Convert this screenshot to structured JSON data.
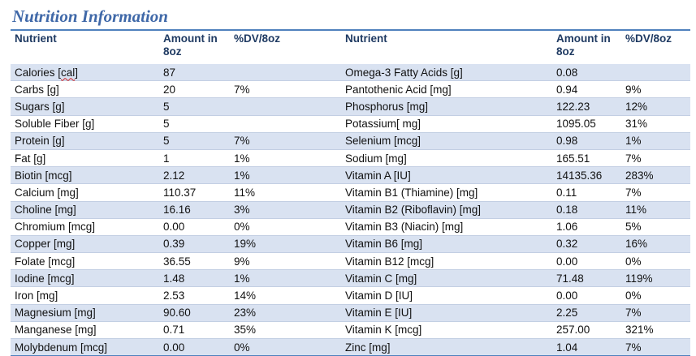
{
  "title": "Nutrition Information",
  "headers": {
    "nutrient": "Nutrient",
    "amount": "Amount in 8oz",
    "dv": "%DV/8oz"
  },
  "rows": [
    {
      "l_name": "Calories [cal]",
      "l_amt": "87",
      "l_dv": "",
      "r_name": "Omega-3 Fatty Acids [g]",
      "r_amt": "0.08",
      "r_dv": ""
    },
    {
      "l_name": "Carbs [g]",
      "l_amt": "20",
      "l_dv": "7%",
      "r_name": "Pantothenic Acid [mg]",
      "r_amt": "0.94",
      "r_dv": "9%"
    },
    {
      "l_name": "Sugars [g]",
      "l_amt": "5",
      "l_dv": "",
      "r_name": "Phosphorus [mg]",
      "r_amt": "122.23",
      "r_dv": "12%"
    },
    {
      "l_name": "Soluble Fiber [g]",
      "l_amt": "5",
      "l_dv": "",
      "r_name": "Potassium[ mg]",
      "r_amt": "1095.05",
      "r_dv": "31%"
    },
    {
      "l_name": "Protein [g]",
      "l_amt": "5",
      "l_dv": "7%",
      "r_name": "Selenium [mcg]",
      "r_amt": "0.98",
      "r_dv": "1%"
    },
    {
      "l_name": "Fat [g]",
      "l_amt": "1",
      "l_dv": "1%",
      "r_name": "Sodium [mg]",
      "r_amt": "165.51",
      "r_dv": "7%"
    },
    {
      "l_name": "Biotin [mcg]",
      "l_amt": "2.12",
      "l_dv": "1%",
      "r_name": "Vitamin A [IU]",
      "r_amt": "14135.36",
      "r_dv": "283%"
    },
    {
      "l_name": "Calcium [mg]",
      "l_amt": "110.37",
      "l_dv": "11%",
      "r_name": "Vitamin B1 (Thiamine) [mg]",
      "r_amt": "0.11",
      "r_dv": "7%"
    },
    {
      "l_name": "Choline [mg]",
      "l_amt": "16.16",
      "l_dv": "3%",
      "r_name": "Vitamin B2 (Riboflavin) [mg]",
      "r_amt": "0.18",
      "r_dv": "11%"
    },
    {
      "l_name": "Chromium [mcg]",
      "l_amt": "0.00",
      "l_dv": "0%",
      "r_name": "Vitamin B3 (Niacin) [mg]",
      "r_amt": "1.06",
      "r_dv": "5%"
    },
    {
      "l_name": "Copper [mg]",
      "l_amt": "0.39",
      "l_dv": "19%",
      "r_name": "Vitamin B6 [mg]",
      "r_amt": "0.32",
      "r_dv": "16%"
    },
    {
      "l_name": "Folate [mcg]",
      "l_amt": "36.55",
      "l_dv": "9%",
      "r_name": "Vitamin B12 [mcg]",
      "r_amt": "0.00",
      "r_dv": "0%"
    },
    {
      "l_name": "Iodine [mcg]",
      "l_amt": "1.48",
      "l_dv": "1%",
      "r_name": "Vitamin C [mg]",
      "r_amt": "71.48",
      "r_dv": "119%"
    },
    {
      "l_name": "Iron [mg]",
      "l_amt": "2.53",
      "l_dv": "14%",
      "r_name": "Vitamin D [IU]",
      "r_amt": "0.00",
      "r_dv": "0%"
    },
    {
      "l_name": "Magnesium [mg]",
      "l_amt": "90.60",
      "l_dv": "23%",
      "r_name": "Vitamin E [IU]",
      "r_amt": "2.25",
      "r_dv": "7%"
    },
    {
      "l_name": "Manganese [mg]",
      "l_amt": "0.71",
      "l_dv": "35%",
      "r_name": "Vitamin K [mcg]",
      "r_amt": "257.00",
      "r_dv": "321%"
    },
    {
      "l_name": "Molybdenum [mcg]",
      "l_amt": "0.00",
      "l_dv": "0%",
      "r_name": "Zinc [mg]",
      "r_amt": "1.04",
      "r_dv": "7%"
    }
  ],
  "colors": {
    "title": "#3f68a8",
    "header_rule": "#4f81bd",
    "band": "#d9e2f1"
  }
}
